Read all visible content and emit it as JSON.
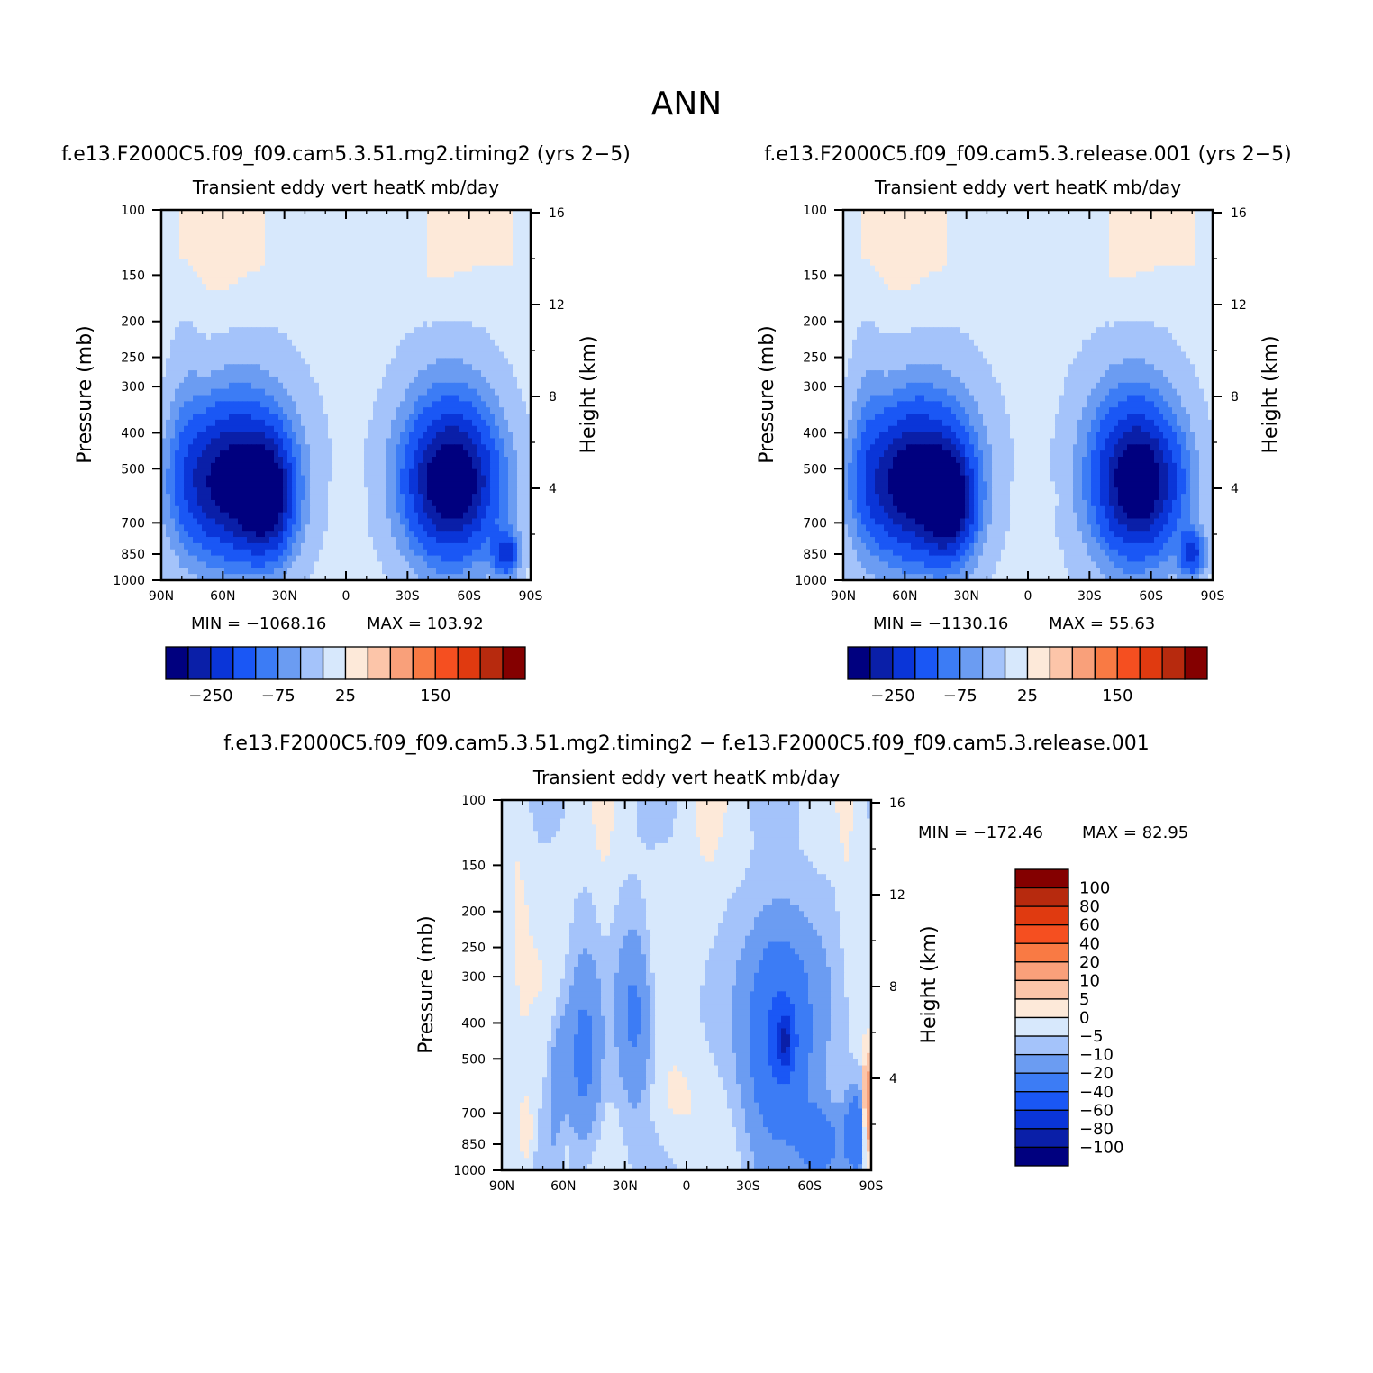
{
  "figure": {
    "title": "ANN"
  },
  "chart_data": [
    {
      "type": "heatmap",
      "case_title": "f.e13.F2000C5.f09_f09.cam5.3.51.mg2.timing2 (yrs 2−5)",
      "title": "Transient eddy vert heatK mb/day",
      "xlabel": "",
      "ylabel": "Pressure (mb)",
      "y2label": "Height (km)",
      "x_ticks": [
        "90N",
        "60N",
        "30N",
        "0",
        "30S",
        "60S",
        "90S"
      ],
      "y_ticks": [
        "100",
        "150",
        "200",
        "250",
        "300",
        "400",
        "500",
        "700",
        "850",
        "1000"
      ],
      "y2_ticks": [
        "16",
        "12",
        "8",
        "4"
      ],
      "min_label": "MIN = −1068.16",
      "max_label": "MAX = 103.92",
      "min": -1068.16,
      "max": 103.92,
      "colorbar_ticks": [
        "−250",
        "−75",
        "25",
        "150"
      ],
      "field": [
        {
          "lat": 60,
          "p": 550,
          "value": -310,
          "r": 24,
          "rp": 240
        },
        {
          "lat": 38,
          "p": 600,
          "value": -320,
          "r": 12,
          "rp": 200
        },
        {
          "lat": -52,
          "p": 550,
          "value": -330,
          "r": 22,
          "rp": 220
        },
        {
          "lat": -78,
          "p": 850,
          "value": -250,
          "r": 6,
          "rp": 120
        },
        {
          "lat": 78,
          "p": 400,
          "value": -45,
          "r": 8,
          "rp": 300
        },
        {
          "lat": 5,
          "p": 600,
          "value": 10,
          "r": 7,
          "rp": 50
        },
        {
          "lat": -12,
          "p": 600,
          "value": 10,
          "r": 7,
          "rp": 50
        },
        {
          "lat": 65,
          "p": 120,
          "value": 8,
          "r": 20,
          "rp": 90
        },
        {
          "lat": -45,
          "p": 120,
          "value": 8,
          "r": 18,
          "rp": 90
        }
      ]
    },
    {
      "type": "heatmap",
      "case_title": "f.e13.F2000C5.f09_f09.cam5.3.release.001 (yrs 2−5)",
      "title": "Transient eddy vert heatK mb/day",
      "xlabel": "",
      "ylabel": "Pressure (mb)",
      "y2label": "Height (km)",
      "x_ticks": [
        "90N",
        "60N",
        "30N",
        "0",
        "30S",
        "60S",
        "90S"
      ],
      "y_ticks": [
        "100",
        "150",
        "200",
        "250",
        "300",
        "400",
        "500",
        "700",
        "850",
        "1000"
      ],
      "y2_ticks": [
        "16",
        "12",
        "8",
        "4"
      ],
      "min_label": "MIN = −1130.16",
      "max_label": "MAX = 55.63",
      "min": -1130.16,
      "max": 55.63,
      "colorbar_ticks": [
        "−250",
        "−75",
        "25",
        "150"
      ],
      "field": [
        {
          "lat": 60,
          "p": 550,
          "value": -320,
          "r": 24,
          "rp": 240
        },
        {
          "lat": 38,
          "p": 620,
          "value": -330,
          "r": 12,
          "rp": 200
        },
        {
          "lat": -55,
          "p": 550,
          "value": -330,
          "r": 20,
          "rp": 220
        },
        {
          "lat": -80,
          "p": 850,
          "value": -250,
          "r": 6,
          "rp": 120
        },
        {
          "lat": 78,
          "p": 400,
          "value": -45,
          "r": 8,
          "rp": 300
        },
        {
          "lat": 5,
          "p": 600,
          "value": 10,
          "r": 7,
          "rp": 50
        },
        {
          "lat": -12,
          "p": 600,
          "value": 10,
          "r": 7,
          "rp": 50
        },
        {
          "lat": 65,
          "p": 120,
          "value": 8,
          "r": 20,
          "rp": 90
        },
        {
          "lat": -45,
          "p": 120,
          "value": 8,
          "r": 18,
          "rp": 90
        }
      ]
    },
    {
      "type": "heatmap",
      "case_title": "f.e13.F2000C5.f09_f09.cam5.3.51.mg2.timing2 − f.e13.F2000C5.f09_f09.cam5.3.release.001",
      "title": "Transient eddy vert heatK mb/day",
      "xlabel": "",
      "ylabel": "Pressure (mb)",
      "y2label": "Height (km)",
      "x_ticks": [
        "90N",
        "60N",
        "30N",
        "0",
        "30S",
        "60S",
        "90S"
      ],
      "y_ticks": [
        "100",
        "150",
        "200",
        "250",
        "300",
        "400",
        "500",
        "700",
        "850",
        "1000"
      ],
      "y2_ticks": [
        "16",
        "12",
        "8",
        "4"
      ],
      "min_label": "MIN = −172.46",
      "max_label": "MAX = 82.95",
      "min": -172.46,
      "max": 82.95,
      "colorbar_ticks": [
        "100",
        "80",
        "60",
        "40",
        "20",
        "10",
        "5",
        "0",
        "−5",
        "−10",
        "−20",
        "−40",
        "−60",
        "−80",
        "−100"
      ],
      "field": [
        {
          "lat": -45,
          "p": 420,
          "value": -45,
          "r": 15,
          "rp": 260
        },
        {
          "lat": -48,
          "p": 450,
          "value": -45,
          "r": 4,
          "rp": 80
        },
        {
          "lat": -65,
          "p": 850,
          "value": -30,
          "r": 10,
          "rp": 200
        },
        {
          "lat": -82,
          "p": 800,
          "value": -35,
          "r": 5,
          "rp": 200
        },
        {
          "lat": 25,
          "p": 380,
          "value": -20,
          "r": 8,
          "rp": 200
        },
        {
          "lat": 50,
          "p": 500,
          "value": -20,
          "r": 8,
          "rp": 260
        },
        {
          "lat": 62,
          "p": 600,
          "value": -15,
          "r": 5,
          "rp": 250
        },
        {
          "lat": 5,
          "p": 650,
          "value": 5,
          "r": 12,
          "rp": 200
        },
        {
          "lat": 60,
          "p": 800,
          "value": 8,
          "r": 4,
          "rp": 200
        },
        {
          "lat": 78,
          "p": 800,
          "value": 8,
          "r": 4,
          "rp": 200
        },
        {
          "lat": 82,
          "p": 150,
          "value": 4,
          "r": 6,
          "rp": 200
        },
        {
          "lat": 40,
          "p": 120,
          "value": 4,
          "r": 6,
          "rp": 150
        },
        {
          "lat": -10,
          "p": 130,
          "value": 4,
          "r": 10,
          "rp": 150
        },
        {
          "lat": -78,
          "p": 150,
          "value": 4,
          "r": 5,
          "rp": 150
        },
        {
          "lat": -88,
          "p": 700,
          "value": 30,
          "r": 2,
          "rp": 250
        }
      ]
    }
  ],
  "palette": {
    "full": [
      "#00007f",
      "#0a1fa8",
      "#0a35d8",
      "#1a57f5",
      "#3c7cf5",
      "#6b9cf2",
      "#a4c3fa",
      "#d7e8fc",
      "#fde9d9",
      "#fcc5a9",
      "#f9a07a",
      "#f97a44",
      "#f54f20",
      "#e03a10",
      "#b72a0e",
      "#840000"
    ],
    "levels_full": [
      -400,
      -325,
      -250,
      -175,
      -125,
      -75,
      -25,
      0,
      25,
      50,
      75,
      100,
      125,
      150,
      200
    ],
    "diff": [
      "#00007f",
      "#0a1fa8",
      "#0a35d8",
      "#1a57f5",
      "#3c7cf5",
      "#6b9cf2",
      "#a4c3fa",
      "#d7e8fc",
      "#fde9d9",
      "#fcc5a9",
      "#f9a07a",
      "#f97a44",
      "#f54f20",
      "#e03a10",
      "#b72a0e",
      "#840000"
    ],
    "levels_diff": [
      -100,
      -80,
      -60,
      -40,
      -20,
      -10,
      -5,
      0,
      5,
      10,
      20,
      40,
      60,
      80,
      100
    ]
  }
}
